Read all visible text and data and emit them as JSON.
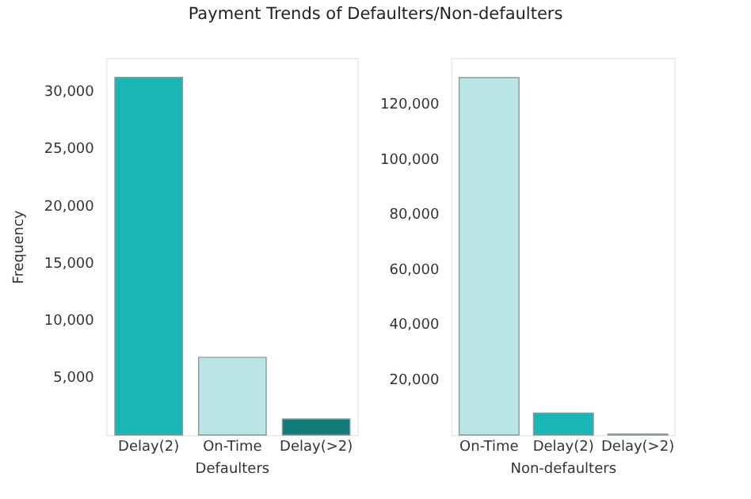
{
  "chart_data": [
    {
      "type": "bar",
      "title": "Payment Trends of Defaulters/Non-defaulters",
      "categories": [
        "Delay(2)",
        "On-Time",
        "Delay(>2)"
      ],
      "values": [
        31400,
        6900,
        1500
      ],
      "colors": [
        "#1ab5b5",
        "#b9e5e6",
        "#127b78"
      ],
      "xlabel": "Defaulters",
      "ylabel": "Frequency",
      "ylim": [
        0,
        33000
      ],
      "yticks": [
        {
          "value": 5000,
          "label": "5,000"
        },
        {
          "value": 10000,
          "label": "10,000"
        },
        {
          "value": 15000,
          "label": "15,000"
        },
        {
          "value": 20000,
          "label": "20,000"
        },
        {
          "value": 25000,
          "label": "25,000"
        },
        {
          "value": 30000,
          "label": "30,000"
        }
      ],
      "grid": false
    },
    {
      "type": "bar",
      "categories": [
        "On-Time",
        "Delay(2)",
        "Delay(>2)"
      ],
      "values": [
        130300,
        8400,
        800
      ],
      "colors": [
        "#b9e5e6",
        "#1ab5b5",
        "#127b78"
      ],
      "xlabel": "Non-defaulters",
      "ylim": [
        0,
        137000
      ],
      "yticks": [
        {
          "value": 20000,
          "label": "20,000"
        },
        {
          "value": 40000,
          "label": "40,000"
        },
        {
          "value": 60000,
          "label": "60,000"
        },
        {
          "value": 80000,
          "label": "80,000"
        },
        {
          "value": 100000,
          "label": "100,000"
        },
        {
          "value": 120000,
          "label": "120,000"
        }
      ],
      "grid": false
    }
  ]
}
